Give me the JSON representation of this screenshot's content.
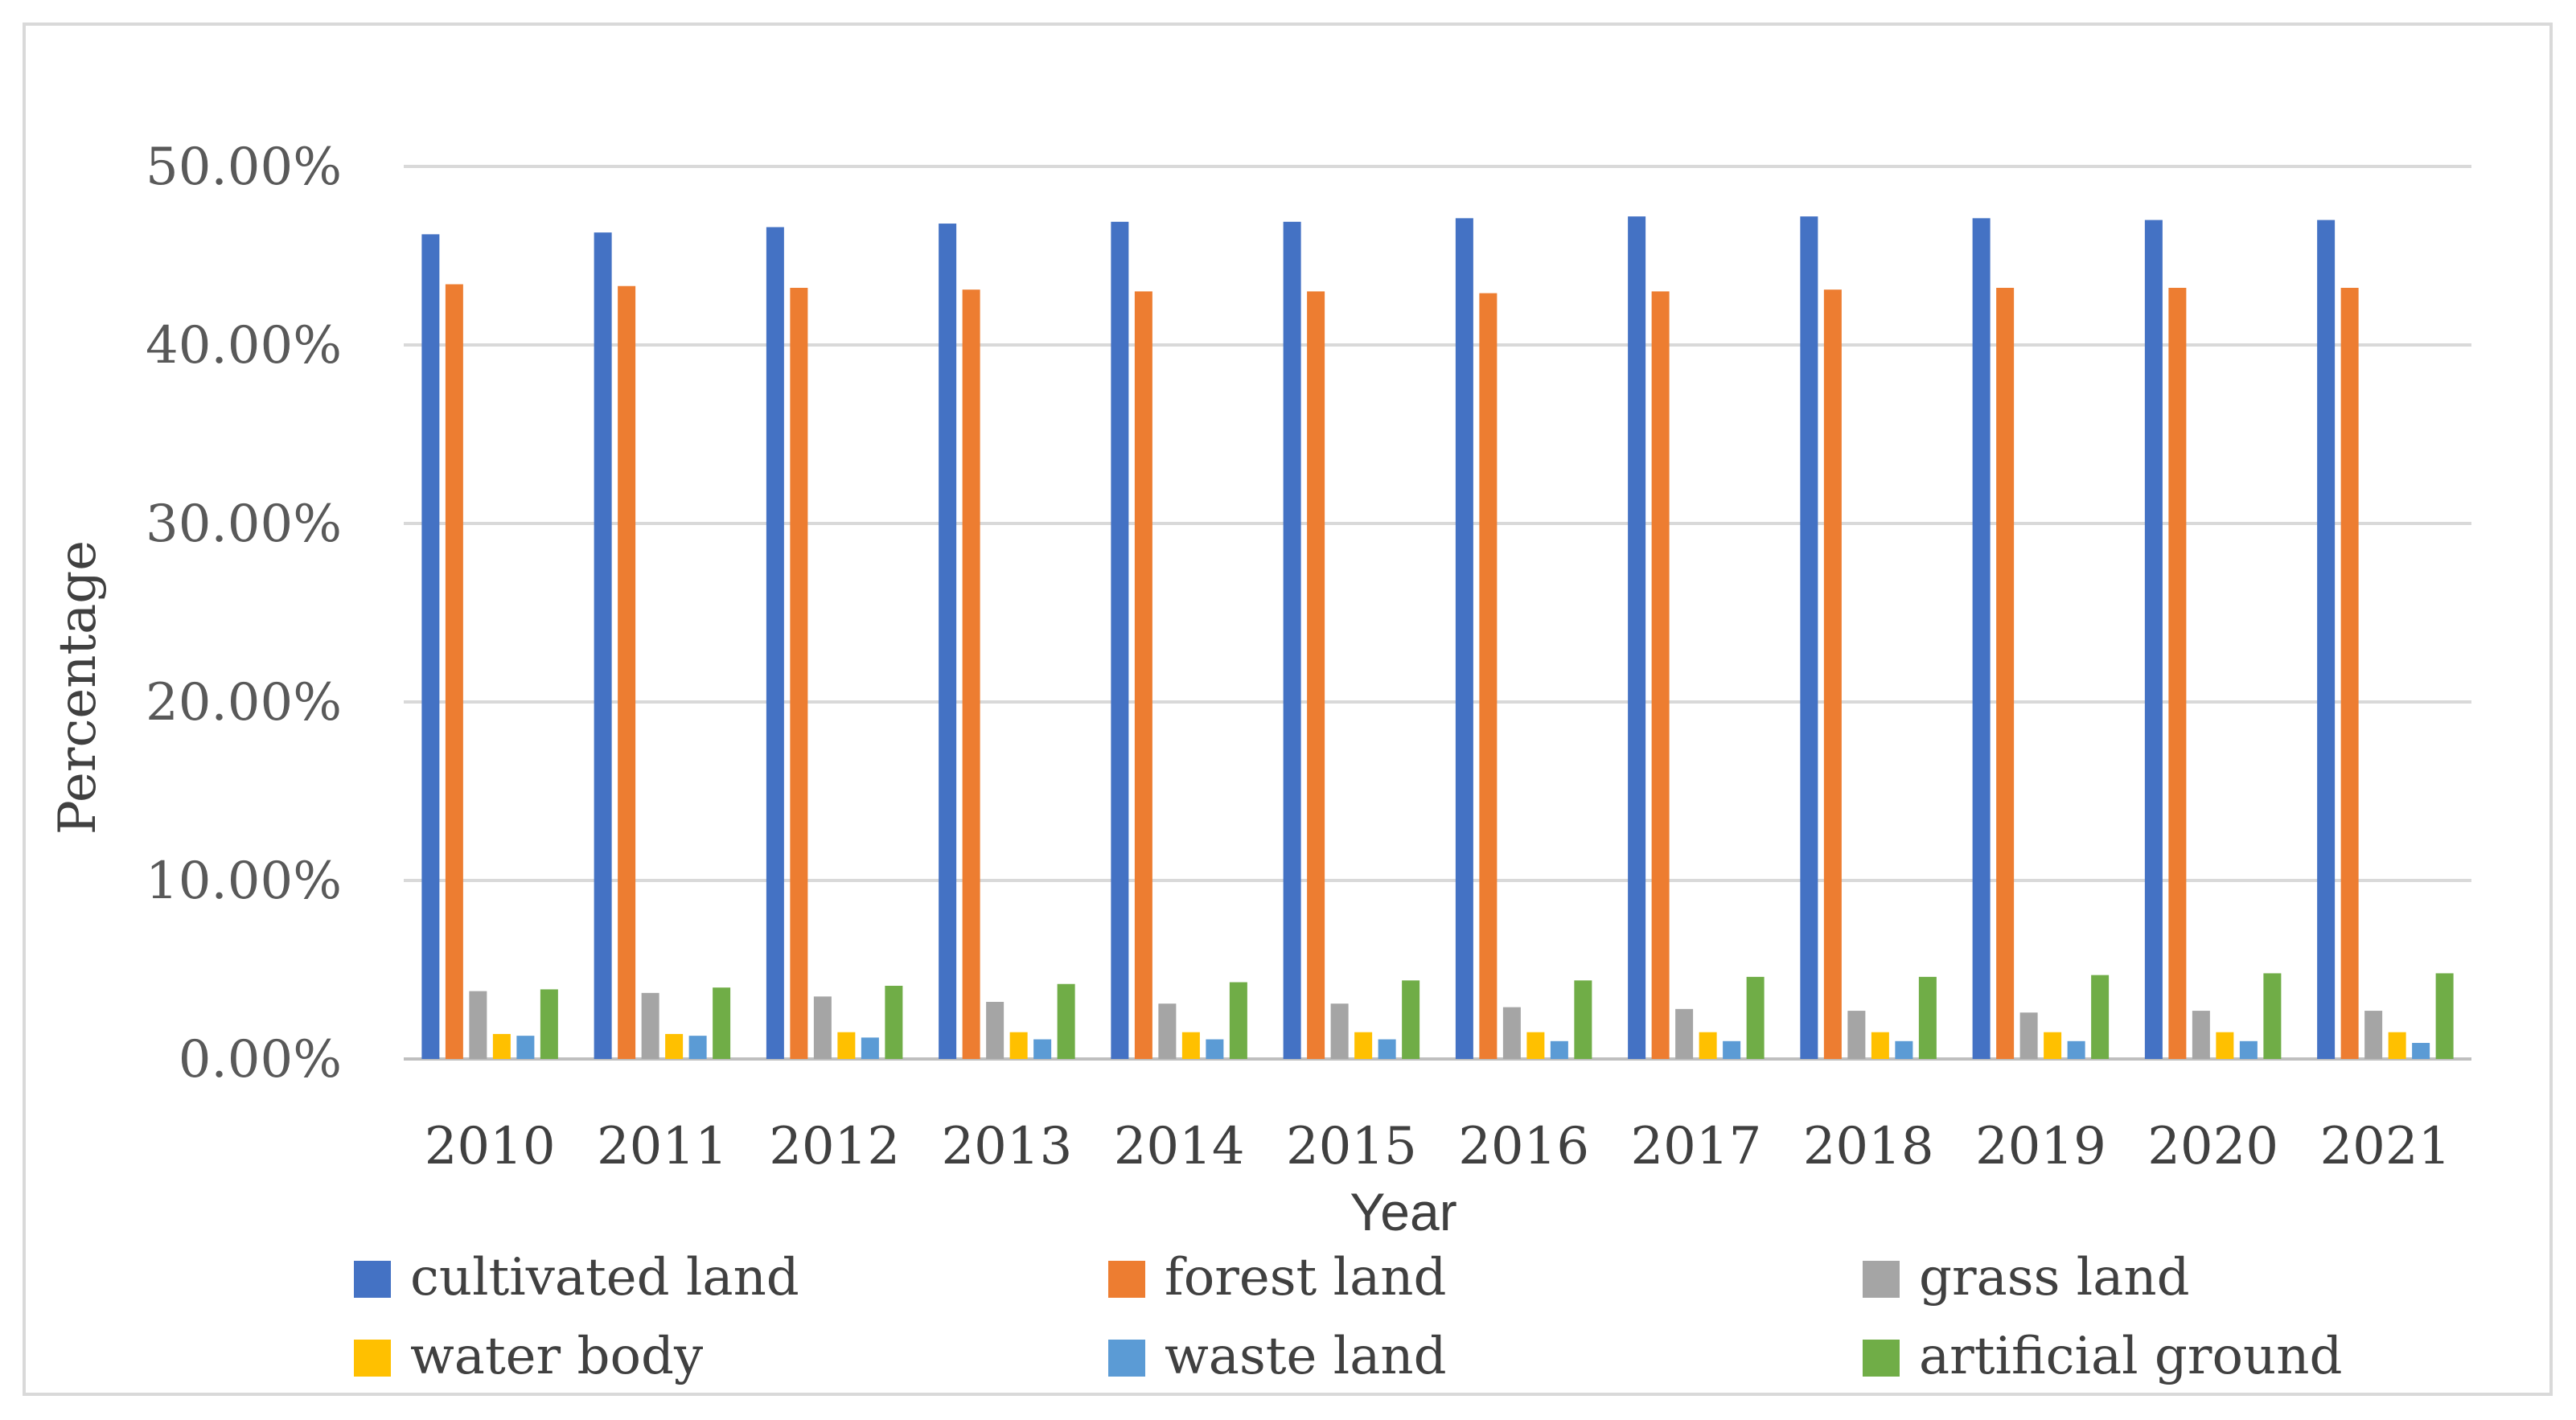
{
  "chart_data": {
    "type": "bar",
    "title": "",
    "xlabel": "Year",
    "ylabel": "Percentage",
    "ylim": [
      0,
      50
    ],
    "yticks": [
      "0.00%",
      "10.00%",
      "20.00%",
      "30.00%",
      "40.00%",
      "50.00%"
    ],
    "grid": true,
    "legend_position": "bottom",
    "categories": [
      "2010",
      "2011",
      "2012",
      "2013",
      "2014",
      "2015",
      "2016",
      "2017",
      "2018",
      "2019",
      "2020",
      "2021"
    ],
    "series": [
      {
        "name": "cultivated land",
        "color": "#4472C4",
        "values": [
          46.2,
          46.3,
          46.6,
          46.8,
          46.9,
          46.9,
          47.1,
          47.2,
          47.2,
          47.1,
          47.0,
          47.0
        ]
      },
      {
        "name": "forest land",
        "color": "#ED7D31",
        "values": [
          43.4,
          43.3,
          43.2,
          43.1,
          43.0,
          43.0,
          42.9,
          43.0,
          43.1,
          43.2,
          43.2,
          43.2
        ]
      },
      {
        "name": "grass land",
        "color": "#A5A5A5",
        "values": [
          3.8,
          3.7,
          3.5,
          3.2,
          3.1,
          3.1,
          2.9,
          2.8,
          2.7,
          2.6,
          2.7,
          2.7
        ]
      },
      {
        "name": "water body",
        "color": "#FFC000",
        "values": [
          1.4,
          1.4,
          1.5,
          1.5,
          1.5,
          1.5,
          1.5,
          1.5,
          1.5,
          1.5,
          1.5,
          1.5
        ]
      },
      {
        "name": "waste land",
        "color": "#5B9BD5",
        "values": [
          1.3,
          1.3,
          1.2,
          1.1,
          1.1,
          1.1,
          1.0,
          1.0,
          1.0,
          1.0,
          1.0,
          0.9
        ]
      },
      {
        "name": "artificial ground",
        "color": "#70AD47",
        "values": [
          3.9,
          4.0,
          4.1,
          4.2,
          4.3,
          4.4,
          4.4,
          4.6,
          4.6,
          4.7,
          4.8,
          4.8
        ]
      }
    ]
  }
}
